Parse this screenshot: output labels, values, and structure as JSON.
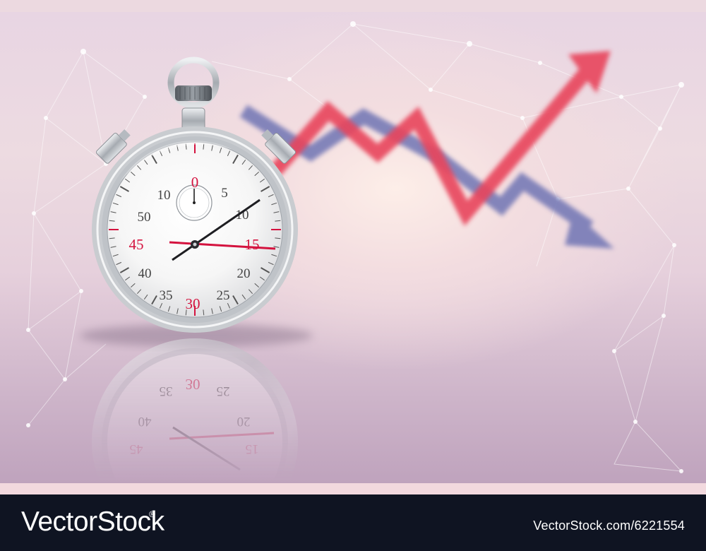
{
  "stopwatch": {
    "dial_numbers": [
      "0",
      "5",
      "10",
      "15",
      "20",
      "25",
      "30",
      "35",
      "40",
      "45",
      "50",
      "10"
    ],
    "colors": {
      "primary_marks": "#d4123e",
      "numbers": "#444444",
      "case": "#c9ccd0"
    },
    "reflection_numbers": [
      "30",
      "35",
      "25",
      "40",
      "20",
      "45",
      "15"
    ]
  },
  "trend_arrows": {
    "up_arrow_color": "#e8455c",
    "down_arrow_color": "#6f74b4"
  },
  "footer": {
    "brand": "VectorStock",
    "brand_mark": "®",
    "credit": "VectorStock.com/6221554"
  }
}
